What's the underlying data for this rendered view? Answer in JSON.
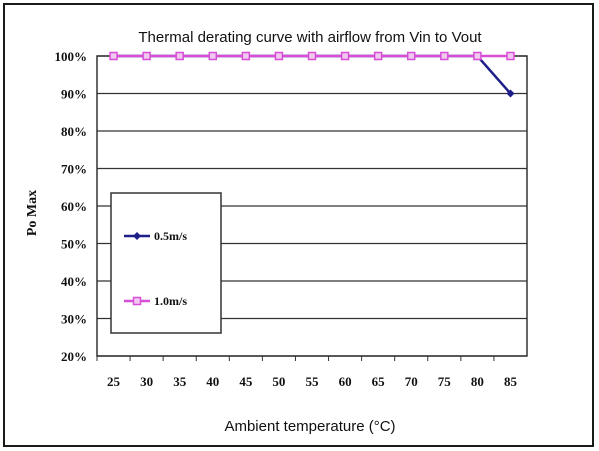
{
  "chart_data": {
    "type": "line",
    "title": "Thermal derating curve with airflow from Vin to Vout",
    "xlabel": "Ambient temperature (°C)",
    "ylabel": "Po Max",
    "categories": [
      "25",
      "30",
      "35",
      "40",
      "45",
      "50",
      "55",
      "60",
      "65",
      "70",
      "75",
      "80",
      "85"
    ],
    "ylim": [
      20,
      100
    ],
    "y_ticks": [
      "20%",
      "30%",
      "40%",
      "50%",
      "60%",
      "70%",
      "80%",
      "90%",
      "100%"
    ],
    "grid": true,
    "legend_position": "left",
    "series": [
      {
        "name": "0.5m/s",
        "values": [
          100,
          100,
          100,
          100,
          100,
          100,
          100,
          100,
          100,
          100,
          100,
          100,
          90
        ],
        "color": "#1f1f8a",
        "marker": "diamond"
      },
      {
        "name": "1.0m/s",
        "values": [
          100,
          100,
          100,
          100,
          100,
          100,
          100,
          100,
          100,
          100,
          100,
          100,
          100
        ],
        "color": "#d64fd6",
        "marker": "square"
      }
    ]
  }
}
